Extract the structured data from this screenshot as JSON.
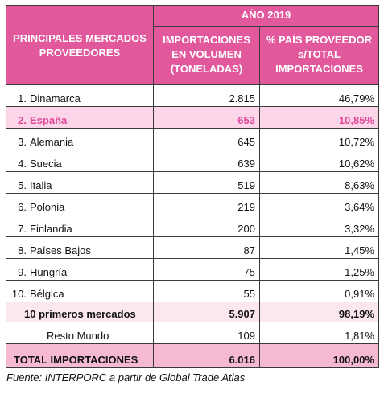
{
  "header": {
    "year": "AÑO 2019",
    "col1": "PRINCIPALES MERCADOS PROVEEDORES",
    "col2": "IMPORTACIONES EN VOLUMEN (TONELADAS)",
    "col3": "% PAÍS PROVEEDOR s/TOTAL IMPORTACIONES"
  },
  "rows": [
    [
      "1.",
      "Dinamarca",
      "2.815",
      "46,79%"
    ],
    [
      "2.",
      "España",
      "653",
      "10,85%"
    ],
    [
      "3.",
      "Alemania",
      "645",
      "10,72%"
    ],
    [
      "4.",
      "Suecia",
      "639",
      "10,62%"
    ],
    [
      "5.",
      "Italia",
      "519",
      "8,63%"
    ],
    [
      "6.",
      "Polonia",
      "219",
      "3,64%"
    ],
    [
      "7.",
      "Finlandia",
      "200",
      "3,32%"
    ],
    [
      "8.",
      "Países Bajos",
      "87",
      "1,45%"
    ],
    [
      "9.",
      "Hungría",
      "75",
      "1,25%"
    ],
    [
      "10.",
      "Bélgica",
      "55",
      "0,91%"
    ]
  ],
  "summary": [
    [
      "10 primeros mercados",
      "5.907",
      "98,19%"
    ],
    [
      "Resto Mundo",
      "109",
      "1,81%"
    ],
    [
      "TOTAL IMPORTACIONES",
      "6.016",
      "100,00%"
    ]
  ],
  "footer": "Fuente: INTERPORC a partir de Global Trade Atlas"
}
